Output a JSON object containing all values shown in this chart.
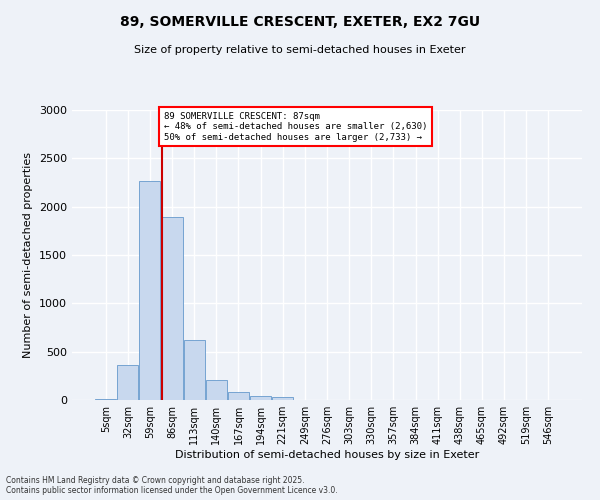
{
  "title1": "89, SOMERVILLE CRESCENT, EXETER, EX2 7GU",
  "title2": "Size of property relative to semi-detached houses in Exeter",
  "xlabel": "Distribution of semi-detached houses by size in Exeter",
  "ylabel": "Number of semi-detached properties",
  "footnote1": "Contains HM Land Registry data © Crown copyright and database right 2025.",
  "footnote2": "Contains public sector information licensed under the Open Government Licence v3.0.",
  "bar_labels": [
    "5sqm",
    "32sqm",
    "59sqm",
    "86sqm",
    "113sqm",
    "140sqm",
    "167sqm",
    "194sqm",
    "221sqm",
    "249sqm",
    "276sqm",
    "303sqm",
    "330sqm",
    "357sqm",
    "384sqm",
    "411sqm",
    "438sqm",
    "465sqm",
    "492sqm",
    "519sqm",
    "546sqm"
  ],
  "bar_values": [
    10,
    360,
    2270,
    1890,
    620,
    205,
    80,
    45,
    28,
    0,
    0,
    0,
    0,
    0,
    0,
    0,
    0,
    0,
    0,
    0,
    0
  ],
  "bar_color": "#c8d8ee",
  "bar_edgecolor": "#6699cc",
  "vline_color": "#cc0000",
  "annotation_text_line1": "89 SOMERVILLE CRESCENT: 87sqm",
  "annotation_text_line2": "← 48% of semi-detached houses are smaller (2,630)",
  "annotation_text_line3": "50% of semi-detached houses are larger (2,733) →",
  "ylim": [
    0,
    3000
  ],
  "yticks": [
    0,
    500,
    1000,
    1500,
    2000,
    2500,
    3000
  ],
  "background_color": "#eef2f8",
  "grid_color": "#ffffff",
  "title_fontsize": 10,
  "subtitle_fontsize": 8,
  "xlabel_fontsize": 8,
  "ylabel_fontsize": 8,
  "tick_fontsize": 7,
  "footnote_fontsize": 5.5
}
